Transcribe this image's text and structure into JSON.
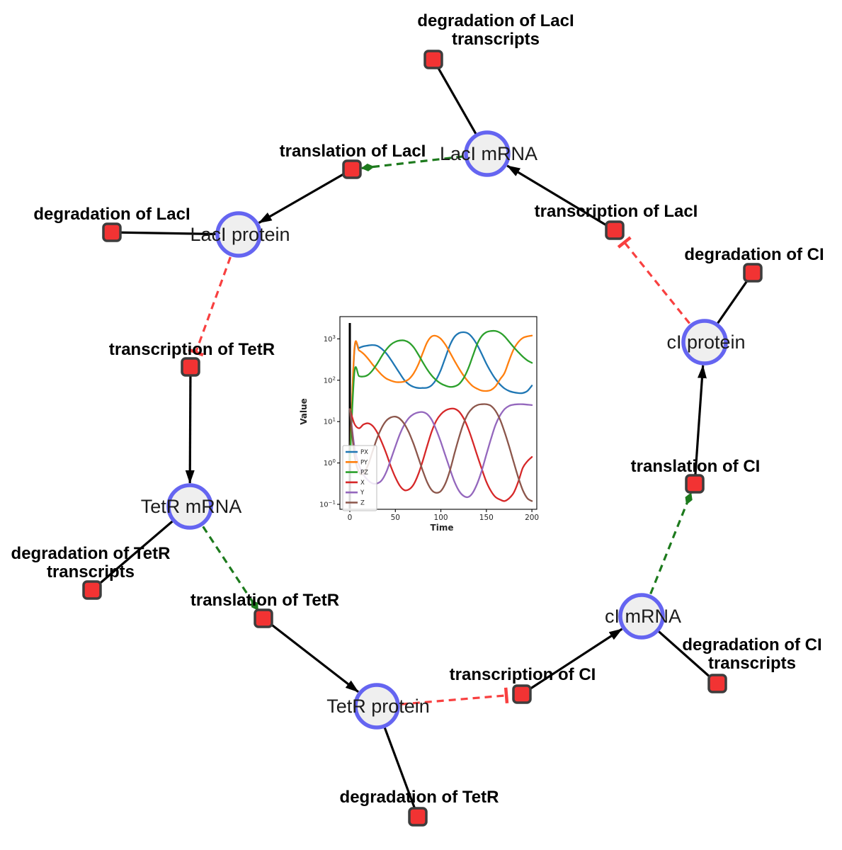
{
  "network": {
    "species": [
      {
        "id": "LacI_mRNA",
        "label": "LacI mRNA"
      },
      {
        "id": "LacI_protein",
        "label": "LacI protein"
      },
      {
        "id": "TetR_mRNA",
        "label": "TetR mRNA"
      },
      {
        "id": "TetR_protein",
        "label": "TetR protein"
      },
      {
        "id": "cI_mRNA",
        "label": "cI mRNA"
      },
      {
        "id": "cI_protein",
        "label": "cI protein"
      }
    ],
    "reactions": [
      {
        "id": "deg_LacI_tr",
        "label": [
          "degradation of LacI",
          "transcripts"
        ]
      },
      {
        "id": "translation_LacI",
        "label": [
          "translation of LacI"
        ]
      },
      {
        "id": "deg_LacI",
        "label": [
          "degradation of LacI"
        ]
      },
      {
        "id": "transcription_LacI",
        "label": [
          "transcription of LacI"
        ]
      },
      {
        "id": "deg_cI",
        "label": [
          "degradation of CI"
        ]
      },
      {
        "id": "transcription_TetR",
        "label": [
          "transcription of TetR"
        ]
      },
      {
        "id": "deg_TetR_tr",
        "label": [
          "degradation of TetR",
          "transcripts"
        ]
      },
      {
        "id": "translation_TetR",
        "label": [
          "translation of TetR"
        ]
      },
      {
        "id": "deg_TetR",
        "label": [
          "degradation of TetR"
        ]
      },
      {
        "id": "transcription_cI",
        "label": [
          "transcription of CI"
        ]
      },
      {
        "id": "deg_cI_tr",
        "label": [
          "degradation of CI",
          "transcripts"
        ]
      },
      {
        "id": "translation_cI",
        "label": [
          "translation of CI"
        ]
      }
    ],
    "edges": [
      {
        "from": "LacI_mRNA",
        "to": "deg_LacI_tr",
        "type": "consumption"
      },
      {
        "from": "LacI_mRNA",
        "to": "translation_LacI",
        "type": "activation"
      },
      {
        "from": "transcription_LacI",
        "to": "LacI_mRNA",
        "type": "production"
      },
      {
        "from": "translation_LacI",
        "to": "LacI_protein",
        "type": "production"
      },
      {
        "from": "LacI_protein",
        "to": "deg_LacI",
        "type": "consumption"
      },
      {
        "from": "LacI_protein",
        "to": "transcription_TetR",
        "type": "inhibition"
      },
      {
        "from": "transcription_TetR",
        "to": "TetR_mRNA",
        "type": "production"
      },
      {
        "from": "TetR_mRNA",
        "to": "deg_TetR_tr",
        "type": "consumption"
      },
      {
        "from": "TetR_mRNA",
        "to": "translation_TetR",
        "type": "activation"
      },
      {
        "from": "translation_TetR",
        "to": "TetR_protein",
        "type": "production"
      },
      {
        "from": "TetR_protein",
        "to": "deg_TetR",
        "type": "consumption"
      },
      {
        "from": "TetR_protein",
        "to": "transcription_cI",
        "type": "inhibition"
      },
      {
        "from": "transcription_cI",
        "to": "cI_mRNA",
        "type": "production"
      },
      {
        "from": "cI_mRNA",
        "to": "deg_cI_tr",
        "type": "consumption"
      },
      {
        "from": "cI_mRNA",
        "to": "translation_cI",
        "type": "activation"
      },
      {
        "from": "translation_cI",
        "to": "cI_protein",
        "type": "production"
      },
      {
        "from": "cI_protein",
        "to": "deg_cI",
        "type": "consumption"
      },
      {
        "from": "cI_protein",
        "to": "transcription_LacI",
        "type": "inhibition"
      }
    ],
    "colors": {
      "species_fill": "#efefef",
      "species_border": "#6565f1",
      "reaction_fill": "#f23333",
      "reaction_border": "#3d3d3d",
      "edge": "#000000",
      "inhibition": "#f84040",
      "activation": "#1d7a1d"
    }
  },
  "chart_data": {
    "type": "line",
    "title": "",
    "xlabel": "Time",
    "ylabel": "Value",
    "x_ticks": [
      0,
      50,
      100,
      150,
      200
    ],
    "y_scale": "log",
    "y_tick_exponents": [
      -1,
      0,
      1,
      2,
      3
    ],
    "xlim": [
      -11,
      206
    ],
    "ylim": [
      0.077,
      3450
    ],
    "legend_position": "lower left",
    "grid": false,
    "annotations": {
      "vline_x": 0,
      "vline_color": "#000000"
    },
    "x": [
      0,
      5,
      10,
      15,
      20,
      25,
      30,
      35,
      40,
      45,
      50,
      55,
      60,
      65,
      70,
      75,
      80,
      85,
      90,
      95,
      100,
      105,
      110,
      115,
      120,
      125,
      130,
      135,
      140,
      145,
      150,
      155,
      160,
      165,
      170,
      175,
      180,
      185,
      190,
      195,
      200
    ],
    "series": [
      {
        "name": "PX",
        "color": "#1f77b4",
        "values": [
          1,
          500,
          600,
          660,
          690,
          710,
          680,
          575,
          447,
          316,
          214,
          145,
          100,
          79,
          69,
          65,
          65,
          66,
          76,
          105,
          178,
          355,
          708,
          1120,
          1380,
          1450,
          1350,
          1050,
          708,
          427,
          251,
          158,
          107,
          79,
          63,
          55,
          51,
          49,
          49,
          55,
          74
        ]
      },
      {
        "name": "PY",
        "color": "#ff7f0e",
        "values": [
          1,
          560,
          525,
          437,
          331,
          240,
          178,
          135,
          110,
          98,
          91,
          90,
          93,
          107,
          145,
          234,
          447,
          830,
          1150,
          1175,
          1000,
          724,
          468,
          295,
          190,
          129,
          93,
          72,
          62,
          56,
          55,
          58,
          71,
          105,
          150,
          300,
          560,
          830,
          1050,
          1150,
          1200
        ]
      },
      {
        "name": "PZ",
        "color": "#2ca02c",
        "values": [
          1,
          151,
          126,
          123,
          135,
          174,
          251,
          380,
          550,
          724,
          851,
          912,
          912,
          813,
          631,
          427,
          275,
          182,
          129,
          100,
          83,
          74,
          69,
          71,
          81,
          112,
          190,
          380,
          759,
          1175,
          1450,
          1550,
          1550,
          1410,
          1150,
          851,
          631,
          479,
          372,
          302,
          263
        ]
      },
      {
        "name": "X",
        "color": "#d62728",
        "values": [
          20,
          8.9,
          6.9,
          8.5,
          9.1,
          7.9,
          5.5,
          3.2,
          1.7,
          0.83,
          0.45,
          0.28,
          0.22,
          0.23,
          0.3,
          0.52,
          1.1,
          2.6,
          5.8,
          10.5,
          15,
          18.6,
          20.4,
          20.4,
          17.4,
          12,
          6.8,
          3.3,
          1.5,
          0.71,
          0.35,
          0.21,
          0.15,
          0.13,
          0.12,
          0.14,
          0.19,
          0.35,
          0.76,
          1.1,
          1.4
        ]
      },
      {
        "name": "Y",
        "color": "#9467bd",
        "values": [
          20,
          2.5,
          0.89,
          0.52,
          0.38,
          0.32,
          0.32,
          0.38,
          0.6,
          1.2,
          2.5,
          5,
          8.5,
          12.3,
          15.1,
          16.6,
          17,
          15.1,
          11,
          6.3,
          3.2,
          1.5,
          0.71,
          0.35,
          0.21,
          0.16,
          0.15,
          0.19,
          0.32,
          0.66,
          1.6,
          3.8,
          8.3,
          14.1,
          20,
          24,
          25.7,
          26.3,
          26.3,
          25.7,
          25.1
        ]
      },
      {
        "name": "Z",
        "color": "#8c564b",
        "values": [
          20,
          1.6,
          0.6,
          0.56,
          0.89,
          1.9,
          4,
          7.1,
          10.5,
          12.6,
          13.2,
          11.7,
          8.7,
          5.4,
          2.9,
          1.4,
          0.66,
          0.34,
          0.22,
          0.19,
          0.21,
          0.32,
          0.66,
          1.7,
          4.2,
          9.1,
          15.8,
          21.4,
          25.1,
          26.3,
          26.3,
          24,
          18.2,
          11.2,
          5.6,
          2.5,
          1.05,
          0.45,
          0.22,
          0.14,
          0.12
        ]
      }
    ]
  }
}
